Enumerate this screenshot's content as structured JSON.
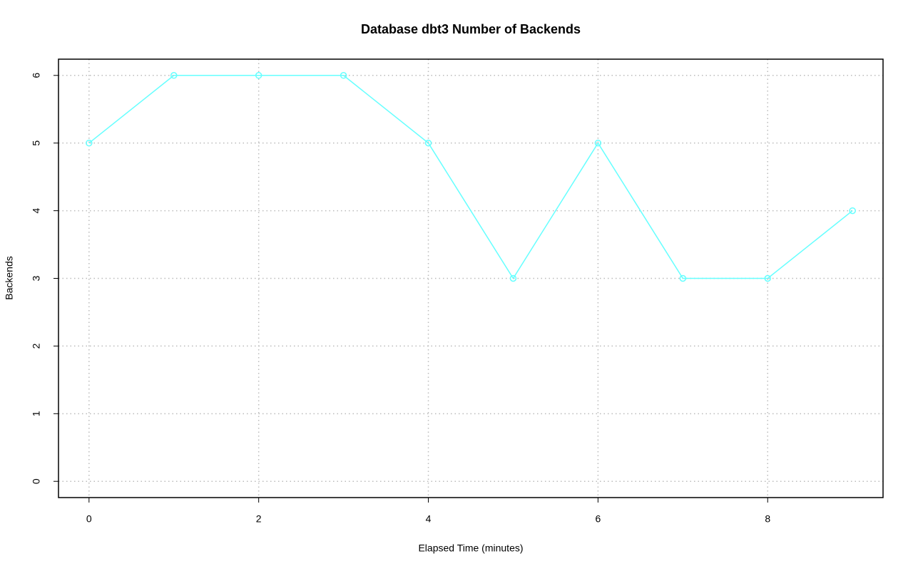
{
  "chart_data": {
    "type": "line",
    "title": "Database dbt3 Number of Backends",
    "x_label": "Elapsed Time (minutes)",
    "y_label": "Backends",
    "x": [
      0,
      1,
      2,
      3,
      4,
      5,
      6,
      7,
      8,
      9
    ],
    "series": [
      {
        "name": "Backends",
        "color": "#66ffff",
        "values": [
          5,
          6,
          6,
          6,
          5,
          3,
          5,
          3,
          3,
          4
        ]
      }
    ],
    "xlim": [
      -0.36,
      9.36
    ],
    "xticks": [
      0,
      2,
      4,
      6,
      8
    ],
    "ylim": [
      -0.24,
      6.24
    ],
    "yticks": [
      0,
      1,
      2,
      3,
      4,
      5,
      6
    ],
    "grid": true
  }
}
